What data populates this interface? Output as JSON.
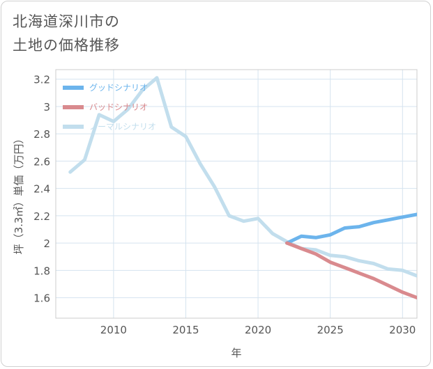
{
  "title": {
    "line1": "北海道深川市の",
    "line2": "土地の価格推移"
  },
  "chart_data": {
    "type": "line",
    "xlabel": "年",
    "ylabel": "坪（3.3㎡）単価（万円）",
    "xlim": [
      2006,
      2031
    ],
    "ylim": [
      1.45,
      3.27
    ],
    "x_ticks": [
      2010,
      2015,
      2020,
      2025,
      2030
    ],
    "x_tick_labels": [
      "2010",
      "2015",
      "2020",
      "2025",
      "2030"
    ],
    "y_ticks": [
      1.6,
      1.8,
      2.0,
      2.2,
      2.4,
      2.6,
      2.8,
      3.0,
      3.2
    ],
    "y_tick_labels": [
      "1.6",
      "1.8",
      "2",
      "2.2",
      "2.4",
      "2.6",
      "2.8",
      "3",
      "3.2"
    ],
    "grid": true,
    "legend_position": "top-left",
    "series": [
      {
        "name": "グッドシナリオ",
        "color": "#6cb4ec",
        "x": [
          2022,
          2023,
          2024,
          2025,
          2026,
          2027,
          2028,
          2029,
          2030,
          2031
        ],
        "y": [
          2.0,
          2.05,
          2.04,
          2.06,
          2.11,
          2.12,
          2.15,
          2.17,
          2.19,
          2.21
        ]
      },
      {
        "name": "バッドシナリオ",
        "color": "#d98a8e",
        "x": [
          2022,
          2023,
          2024,
          2025,
          2026,
          2027,
          2028,
          2029,
          2030,
          2031
        ],
        "y": [
          2.0,
          1.96,
          1.92,
          1.86,
          1.82,
          1.78,
          1.74,
          1.69,
          1.64,
          1.6
        ]
      },
      {
        "name": "ノーマルシナリオ",
        "color": "#c2deed",
        "x": [
          2007,
          2008,
          2009,
          2010,
          2011,
          2012,
          2013,
          2014,
          2015,
          2016,
          2017,
          2018,
          2019,
          2020,
          2021,
          2022,
          2023,
          2024,
          2025,
          2026,
          2027,
          2028,
          2029,
          2030,
          2031
        ],
        "y": [
          2.52,
          2.61,
          2.94,
          2.89,
          2.98,
          3.12,
          3.21,
          2.85,
          2.78,
          2.58,
          2.41,
          2.2,
          2.16,
          2.18,
          2.07,
          2.01,
          1.96,
          1.95,
          1.91,
          1.9,
          1.87,
          1.85,
          1.81,
          1.8,
          1.76
        ]
      }
    ]
  }
}
